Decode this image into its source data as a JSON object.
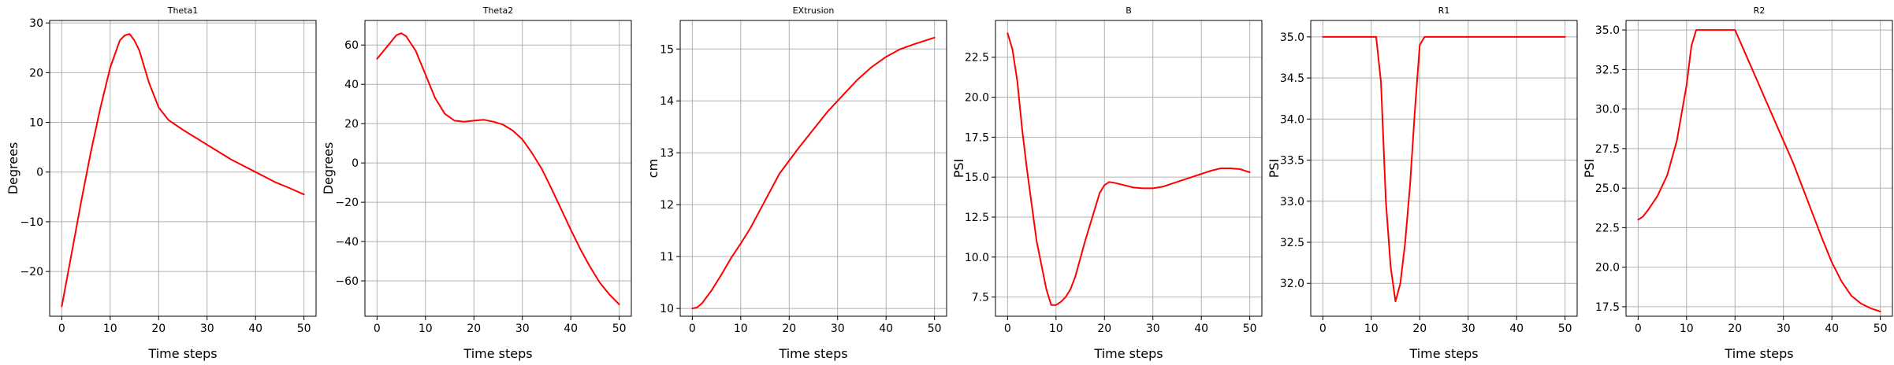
{
  "chart_data": [
    {
      "type": "line",
      "title": "Theta1",
      "xlabel": "Time steps",
      "ylabel": "Degrees",
      "xlim": [
        -2.5,
        52.5
      ],
      "ylim": [
        -29,
        30.5
      ],
      "xticks": [
        0,
        10,
        20,
        30,
        40,
        50
      ],
      "yticks": [
        -20,
        -10,
        0,
        10,
        20,
        30
      ],
      "grid": true,
      "color": "#ff0000",
      "series": [
        {
          "x": [
            0,
            2,
            4,
            6,
            8,
            10,
            12,
            13,
            14,
            15,
            16,
            18,
            20,
            22,
            25,
            30,
            35,
            40,
            44,
            47,
            50
          ],
          "y": [
            -27,
            -16.5,
            -6,
            4,
            13,
            21,
            26.5,
            27.5,
            27.8,
            26.5,
            24.5,
            18,
            13,
            10.5,
            8.5,
            5.5,
            2.5,
            0,
            -2,
            -3.2,
            -4.5
          ]
        }
      ]
    },
    {
      "type": "line",
      "title": "Theta2",
      "xlabel": "Time steps",
      "ylabel": "Degrees",
      "xlim": [
        -2.5,
        52.5
      ],
      "ylim": [
        -78,
        72.5
      ],
      "xticks": [
        0,
        10,
        20,
        30,
        40,
        50
      ],
      "yticks": [
        -60,
        -40,
        -20,
        0,
        20,
        40,
        60
      ],
      "grid": true,
      "color": "#ff0000",
      "series": [
        {
          "x": [
            0,
            2,
            4,
            5,
            6,
            8,
            10,
            12,
            14,
            16,
            18,
            20,
            22,
            24,
            26,
            28,
            30,
            32,
            34,
            36,
            38,
            40,
            42,
            44,
            46,
            48,
            50
          ],
          "y": [
            53,
            59,
            65,
            66,
            64.5,
            57,
            45,
            33,
            25,
            21.5,
            21,
            21.5,
            22,
            21,
            19.5,
            16.5,
            12,
            5,
            -3,
            -13,
            -23.5,
            -34,
            -44,
            -53,
            -61,
            -67,
            -72
          ]
        }
      ]
    },
    {
      "type": "line",
      "title": "EXtrusion",
      "xlabel": "Time steps",
      "ylabel": "cm",
      "xlim": [
        -2.5,
        52.5
      ],
      "ylim": [
        9.85,
        15.55
      ],
      "xticks": [
        0,
        10,
        20,
        30,
        40,
        50
      ],
      "yticks": [
        10,
        11,
        12,
        13,
        14,
        15
      ],
      "grid": true,
      "color": "#ff0000",
      "series": [
        {
          "x": [
            0,
            1,
            2,
            4,
            6,
            8,
            10,
            12,
            14,
            16,
            18,
            20,
            22,
            25,
            28,
            31,
            34,
            37,
            40,
            43,
            46,
            50
          ],
          "y": [
            10,
            10.02,
            10.1,
            10.35,
            10.65,
            10.97,
            11.25,
            11.55,
            11.9,
            12.25,
            12.6,
            12.85,
            13.1,
            13.45,
            13.8,
            14.1,
            14.4,
            14.65,
            14.85,
            15.0,
            15.1,
            15.22
          ]
        }
      ]
    },
    {
      "type": "line",
      "title": "B",
      "xlabel": "Time steps",
      "ylabel": "PSI",
      "xlim": [
        -2.5,
        52.5
      ],
      "ylim": [
        6.3,
        24.8
      ],
      "xticks": [
        0,
        10,
        20,
        30,
        40,
        50
      ],
      "yticks": [
        7.5,
        10.0,
        12.5,
        15.0,
        17.5,
        20.0,
        22.5
      ],
      "grid": true,
      "color": "#ff0000",
      "series": [
        {
          "x": [
            0,
            1,
            2,
            3,
            4,
            6,
            8,
            9,
            10,
            11,
            12,
            13,
            14,
            16,
            18,
            19,
            20,
            21,
            22,
            24,
            26,
            28,
            30,
            32,
            34,
            36,
            38,
            40,
            42,
            44,
            46,
            48,
            50
          ],
          "y": [
            24,
            23,
            21,
            18,
            15.5,
            11,
            8,
            7,
            7,
            7.2,
            7.5,
            8,
            8.8,
            11,
            13,
            14,
            14.5,
            14.7,
            14.65,
            14.5,
            14.35,
            14.3,
            14.3,
            14.4,
            14.6,
            14.8,
            15.0,
            15.2,
            15.4,
            15.55,
            15.55,
            15.5,
            15.3
          ]
        }
      ]
    },
    {
      "type": "line",
      "title": "R1",
      "xlabel": "Time steps",
      "ylabel": "PSI",
      "xlim": [
        -2.5,
        52.5
      ],
      "ylim": [
        31.6,
        35.2
      ],
      "xticks": [
        0,
        10,
        20,
        30,
        40,
        50
      ],
      "yticks": [
        32.0,
        32.5,
        33.0,
        33.5,
        34.0,
        34.5,
        35.0
      ],
      "grid": true,
      "color": "#ff0000",
      "series": [
        {
          "x": [
            0,
            11,
            12,
            13,
            14,
            15,
            16,
            17,
            18,
            19,
            20,
            21,
            50
          ],
          "y": [
            35,
            35,
            34.45,
            33.0,
            32.2,
            31.78,
            32.0,
            32.5,
            33.2,
            34.1,
            34.9,
            35,
            35
          ]
        }
      ]
    },
    {
      "type": "line",
      "title": "R2",
      "xlabel": "Time steps",
      "ylabel": "PSI",
      "xlim": [
        -2.5,
        52.5
      ],
      "ylim": [
        16.9,
        35.6
      ],
      "xticks": [
        0,
        10,
        20,
        30,
        40,
        50
      ],
      "yticks": [
        17.5,
        20.0,
        22.5,
        25.0,
        27.5,
        30.0,
        32.5,
        35.0
      ],
      "grid": true,
      "color": "#ff0000",
      "series": [
        {
          "x": [
            0,
            1,
            2,
            4,
            6,
            8,
            10,
            11,
            12,
            14,
            16,
            18,
            20,
            22,
            24,
            26,
            28,
            30,
            32,
            34,
            36,
            38,
            40,
            42,
            44,
            46,
            48,
            50
          ],
          "y": [
            23,
            23.2,
            23.6,
            24.5,
            25.8,
            28,
            31.5,
            34,
            35,
            35,
            35,
            35,
            35,
            33.6,
            32.2,
            30.8,
            29.4,
            28,
            26.6,
            25,
            23.4,
            21.8,
            20.3,
            19.1,
            18.2,
            17.7,
            17.4,
            17.2
          ]
        }
      ]
    }
  ]
}
